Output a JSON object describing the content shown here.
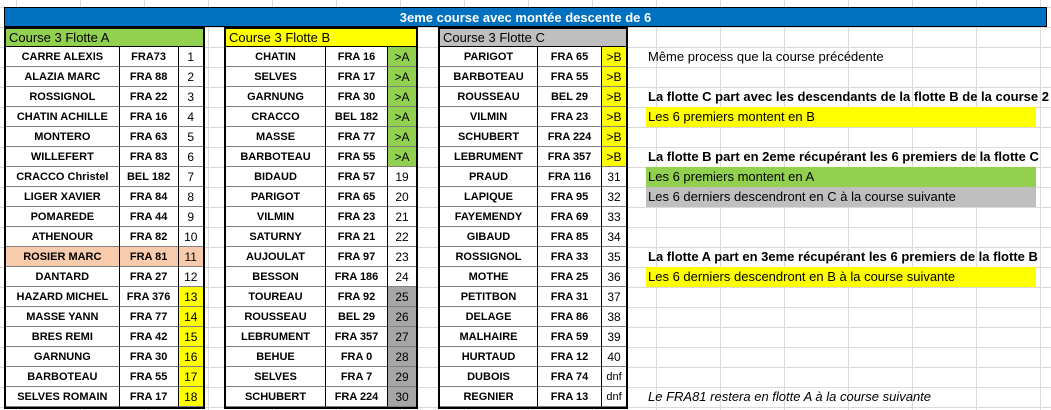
{
  "title": "3eme course avec montée descente de 6",
  "colors": {
    "title_bg": "#0070c0",
    "fleet_a_head": "#92d050",
    "fleet_b_head": "#ffff00",
    "fleet_c_head": "#bfbfbf",
    "promote_green": "#92d050",
    "promote_yellow": "#ffff00",
    "relegate_yellow": "#ffff00",
    "relegate_gray": "#a6a6a6",
    "highlight_orange": "#f8cbad"
  },
  "fleets": [
    {
      "label": "Course 3 Flotte A",
      "head_color": "#92d050",
      "rows": [
        {
          "name": "CARRE ALEXIS",
          "sail": "FRA73",
          "rank": "1",
          "rank_bg": ""
        },
        {
          "name": "ALAZIA MARC",
          "sail": "FRA 88",
          "rank": "2",
          "rank_bg": ""
        },
        {
          "name": "ROSSIGNOL",
          "sail": "FRA 22",
          "rank": "3",
          "rank_bg": ""
        },
        {
          "name": "CHATIN ACHILLE",
          "sail": "FRA 16",
          "rank": "4",
          "rank_bg": ""
        },
        {
          "name": "MONTERO",
          "sail": "FRA 63",
          "rank": "5",
          "rank_bg": ""
        },
        {
          "name": "WILLEFERT",
          "sail": "FRA 83",
          "rank": "6",
          "rank_bg": ""
        },
        {
          "name": "CRACCO Christel",
          "sail": "BEL 182",
          "rank": "7",
          "rank_bg": ""
        },
        {
          "name": "LIGER XAVIER",
          "sail": "FRA 84",
          "rank": "8",
          "rank_bg": ""
        },
        {
          "name": "POMAREDE",
          "sail": "FRA 44",
          "rank": "9",
          "rank_bg": ""
        },
        {
          "name": "ATHENOUR",
          "sail": "FRA 82",
          "rank": "10",
          "rank_bg": ""
        },
        {
          "name": "ROSIER MARC",
          "sail": "FRA 81",
          "rank": "11",
          "rank_bg": "",
          "row_bg": "#f8cbad"
        },
        {
          "name": "DANTARD",
          "sail": "FRA 27",
          "rank": "12",
          "rank_bg": ""
        },
        {
          "name": "HAZARD MICHEL",
          "sail": "FRA 376",
          "rank": "13",
          "rank_bg": "#ffff00"
        },
        {
          "name": "MASSE YANN",
          "sail": "FRA 77",
          "rank": "14",
          "rank_bg": "#ffff00"
        },
        {
          "name": "BRES REMI",
          "sail": "FRA 42",
          "rank": "15",
          "rank_bg": "#ffff00"
        },
        {
          "name": "GARNUNG",
          "sail": "FRA 30",
          "rank": "16",
          "rank_bg": "#ffff00"
        },
        {
          "name": "BARBOTEAU",
          "sail": "FRA 55",
          "rank": "17",
          "rank_bg": "#ffff00"
        },
        {
          "name": "SELVES ROMAIN",
          "sail": "FRA 17",
          "rank": "18",
          "rank_bg": "#ffff00"
        }
      ]
    },
    {
      "label": "Course 3 Flotte B",
      "head_color": "#ffff00",
      "rows": [
        {
          "name": "CHATIN",
          "sail": "FRA 16",
          "rank": ">A",
          "rank_bg": "#92d050"
        },
        {
          "name": "SELVES",
          "sail": "FRA 17",
          "rank": ">A",
          "rank_bg": "#92d050"
        },
        {
          "name": "GARNUNG",
          "sail": "FRA 30",
          "rank": ">A",
          "rank_bg": "#92d050"
        },
        {
          "name": "CRACCO",
          "sail": "BEL 182",
          "rank": ">A",
          "rank_bg": "#92d050"
        },
        {
          "name": "MASSE",
          "sail": "FRA 77",
          "rank": ">A",
          "rank_bg": "#92d050"
        },
        {
          "name": "BARBOTEAU",
          "sail": "FRA 55",
          "rank": ">A",
          "rank_bg": "#92d050"
        },
        {
          "name": "BIDAUD",
          "sail": "FRA 57",
          "rank": "19",
          "rank_bg": ""
        },
        {
          "name": "PARIGOT",
          "sail": "FRA 65",
          "rank": "20",
          "rank_bg": ""
        },
        {
          "name": "VILMIN",
          "sail": "FRA 23",
          "rank": "21",
          "rank_bg": ""
        },
        {
          "name": "SATURNY",
          "sail": "FRA 21",
          "rank": "22",
          "rank_bg": ""
        },
        {
          "name": "AUJOULAT",
          "sail": "FRA 97",
          "rank": "23",
          "rank_bg": ""
        },
        {
          "name": "BESSON",
          "sail": "FRA 186",
          "rank": "24",
          "rank_bg": ""
        },
        {
          "name": "TOUREAU",
          "sail": "FRA 92",
          "rank": "25",
          "rank_bg": "#a6a6a6"
        },
        {
          "name": "ROUSSEAU",
          "sail": "BEL 29",
          "rank": "26",
          "rank_bg": "#a6a6a6"
        },
        {
          "name": "LEBRUMENT",
          "sail": "FRA 357",
          "rank": "27",
          "rank_bg": "#a6a6a6"
        },
        {
          "name": "BEHUE",
          "sail": "FRA 0",
          "rank": "28",
          "rank_bg": "#a6a6a6"
        },
        {
          "name": "SELVES",
          "sail": "FRA 7",
          "rank": "29",
          "rank_bg": "#a6a6a6"
        },
        {
          "name": "SCHUBERT",
          "sail": "FRA 224",
          "rank": "30",
          "rank_bg": "#a6a6a6"
        }
      ]
    },
    {
      "label": "Course 3 Flotte C",
      "head_color": "#bfbfbf",
      "rows": [
        {
          "name": "PARIGOT",
          "sail": "FRA 65",
          "rank": ">B",
          "rank_bg": "#ffff00"
        },
        {
          "name": "BARBOTEAU",
          "sail": "FRA 55",
          "rank": ">B",
          "rank_bg": "#ffff00"
        },
        {
          "name": "ROUSSEAU",
          "sail": "BEL 29",
          "rank": ">B",
          "rank_bg": "#ffff00"
        },
        {
          "name": "VILMIN",
          "sail": "FRA 23",
          "rank": ">B",
          "rank_bg": "#ffff00"
        },
        {
          "name": "SCHUBERT",
          "sail": "FRA 224",
          "rank": ">B",
          "rank_bg": "#ffff00"
        },
        {
          "name": "LEBRUMENT",
          "sail": "FRA 357",
          "rank": ">B",
          "rank_bg": "#ffff00"
        },
        {
          "name": "PRAUD",
          "sail": "FRA 116",
          "rank": "31",
          "rank_bg": ""
        },
        {
          "name": "LAPIQUE",
          "sail": "FRA 95",
          "rank": "32",
          "rank_bg": ""
        },
        {
          "name": "FAYEMENDY",
          "sail": "FRA 69",
          "rank": "33",
          "rank_bg": ""
        },
        {
          "name": "GIBAUD",
          "sail": "FRA 85",
          "rank": "34",
          "rank_bg": ""
        },
        {
          "name": "ROSSIGNOL",
          "sail": "FRA 33",
          "rank": "35",
          "rank_bg": ""
        },
        {
          "name": "MOTHE",
          "sail": "FRA 25",
          "rank": "36",
          "rank_bg": ""
        },
        {
          "name": "PETITBON",
          "sail": "FRA 31",
          "rank": "37",
          "rank_bg": ""
        },
        {
          "name": "DELAGE",
          "sail": "FRA 86",
          "rank": "38",
          "rank_bg": ""
        },
        {
          "name": "MALHAIRE",
          "sail": "FRA 59",
          "rank": "39",
          "rank_bg": ""
        },
        {
          "name": "HURTAUD",
          "sail": "FRA 12",
          "rank": "40",
          "rank_bg": ""
        },
        {
          "name": "DUBOIS",
          "sail": "FRA 74",
          "rank": "dnf",
          "rank_bg": ""
        },
        {
          "name": "REGNIER",
          "sail": "FRA 13",
          "rank": "dnf",
          "rank_bg": ""
        }
      ]
    }
  ],
  "notes": [
    {
      "text": "Même process que la course précédente",
      "bold": false,
      "italic": false,
      "bg": ""
    },
    {
      "text": "La flotte C part  avec les descendants de la flotte B de la course 2",
      "bold": true,
      "italic": false,
      "bg": ""
    },
    {
      "text": "Les 6 premiers montent en B",
      "bold": false,
      "italic": false,
      "bg": "#ffff00"
    },
    {
      "text": "La flotte B part en 2eme récupérant les 6 premiers de la flotte C",
      "bold": true,
      "italic": false,
      "bg": ""
    },
    {
      "text": "Les 6 premiers montent en A",
      "bold": false,
      "italic": false,
      "bg": "#92d050"
    },
    {
      "text": "Les 6 derniers descendront en C à la course suivante",
      "bold": false,
      "italic": false,
      "bg": "#bfbfbf"
    },
    {
      "text": "La flotte A part en 3eme récupérant les 6 premiers de la flotte B",
      "bold": true,
      "italic": false,
      "bg": ""
    },
    {
      "text": "Les 6 derniers descendront en B à la course suivante",
      "bold": false,
      "italic": false,
      "bg": "#ffff00"
    },
    {
      "text": "Le FRA81 restera en flotte A à la course suivante",
      "bold": false,
      "italic": true,
      "bg": ""
    }
  ]
}
